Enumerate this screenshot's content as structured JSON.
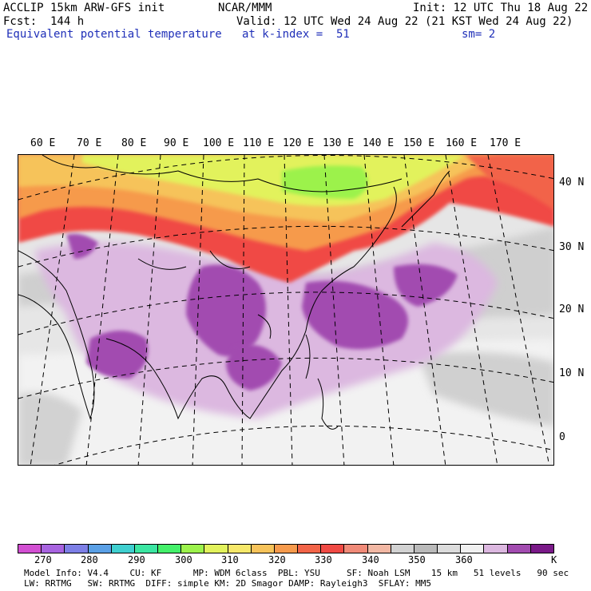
{
  "header": {
    "model": "ACCLIP 15km ARW-GFS init",
    "org": "NCAR/MMM",
    "init": "Init: 12 UTC Thu 18 Aug 22",
    "fcst": "Fcst:  144 h",
    "valid": "Valid: 12 UTC Wed 24 Aug 22 (21 KST Wed 24 Aug 22)",
    "field": "Equivalent potential temperature",
    "level": "at k-index =  51",
    "smooth": "sm= 2"
  },
  "map": {
    "lon_labels": [
      "60 E",
      "70 E",
      "80 E",
      "90 E",
      "100 E",
      "110 E",
      "120 E",
      "130 E",
      "140 E",
      "150 E",
      "160 E",
      "170 E"
    ],
    "lat_labels": [
      "40 N",
      "30 N",
      "20 N",
      "10 N",
      "0"
    ]
  },
  "colorbar": {
    "unit": "K",
    "labels": [
      "270",
      "280",
      "290",
      "300",
      "310",
      "320",
      "330",
      "340",
      "350",
      "360"
    ],
    "colors": [
      "#d24fd2",
      "#a864e0",
      "#7d7fe6",
      "#5aa0e6",
      "#3fcfcf",
      "#3be6a2",
      "#44f06a",
      "#9cf24c",
      "#e2f25c",
      "#f6e86a",
      "#f6c35a",
      "#f69a4c",
      "#f26448",
      "#f04a44",
      "#f08a78",
      "#f2b8a4",
      "#d2d2d2",
      "#bababa",
      "#dcdcdc",
      "#f0f0f0",
      "#dcb8e0",
      "#a24cb0",
      "#7a1a88"
    ]
  },
  "footer": {
    "line1": "Model Info: V4.4    CU: KF      MP: WDM 6class  PBL: YSU     SF: Noah LSM    15 km   51 levels   90 sec",
    "line2": "LW: RRTMG   SW: RRTMG  DIFF: simple KM: 2D Smagor DAMP: Rayleigh3  SFLAY: MM5"
  }
}
